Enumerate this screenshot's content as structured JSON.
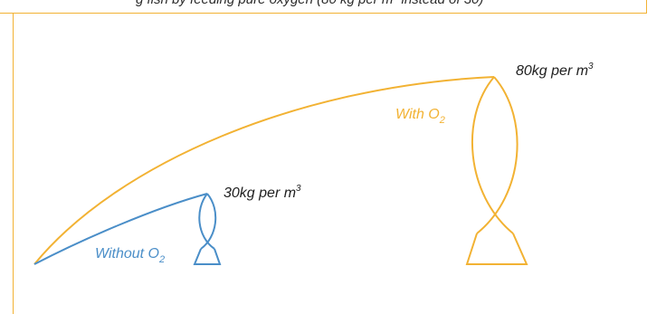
{
  "caption": "g fish by feeding pure oxygen (80 kg per m³ instead of 30)",
  "colors": {
    "without": "#4a8ec8",
    "with": "#f2b233",
    "text": "#1f1f1f"
  },
  "small_fish": {
    "density_prefix": "30kg per m",
    "density_sup": "3",
    "label_prefix": "Without O",
    "label_sub": "2"
  },
  "large_fish": {
    "density_prefix": "80kg per m",
    "density_sup": "3",
    "label_prefix": "With O",
    "label_sub": "2"
  }
}
